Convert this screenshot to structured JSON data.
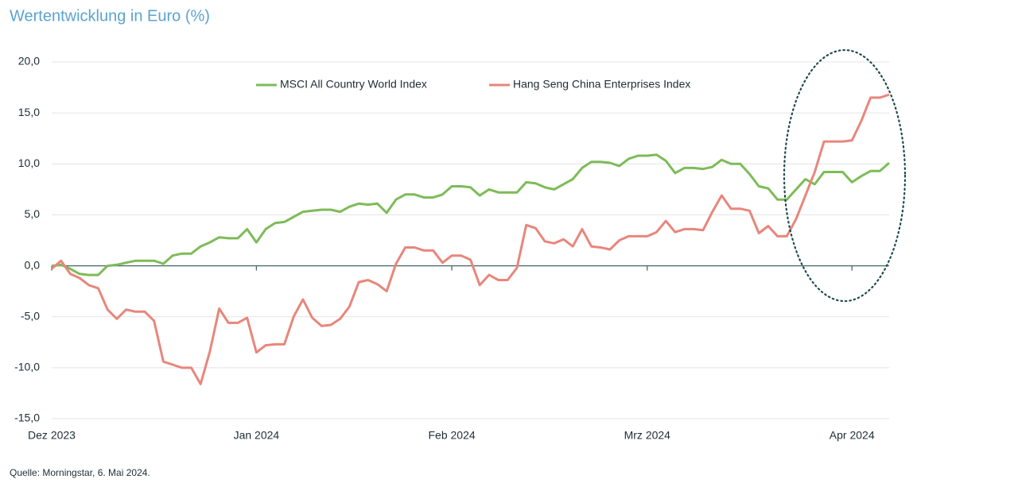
{
  "chart_data": {
    "type": "line",
    "title": "Wertentwicklung in Euro (%)",
    "source": "Quelle: Morningstar, 6. Mai 2024.",
    "categories": [
      "Dez 2023",
      null,
      null,
      null,
      null,
      null,
      null,
      null,
      null,
      null,
      null,
      null,
      null,
      null,
      null,
      null,
      null,
      null,
      null,
      null,
      null,
      null,
      "Jan 2024",
      null,
      null,
      null,
      null,
      null,
      null,
      null,
      null,
      null,
      null,
      null,
      null,
      null,
      null,
      null,
      null,
      null,
      null,
      null,
      null,
      "Feb 2024",
      null,
      null,
      null,
      null,
      null,
      null,
      null,
      null,
      null,
      null,
      null,
      null,
      null,
      null,
      null,
      null,
      null,
      null,
      null,
      null,
      "Mrz 2024",
      null,
      null,
      null,
      null,
      null,
      null,
      null,
      null,
      null,
      null,
      null,
      null,
      null,
      null,
      null,
      null,
      null,
      null,
      null,
      null,
      null,
      "Apr 2024",
      null,
      null,
      null,
      null
    ],
    "series": [
      {
        "name": "MSCI All Country World Index",
        "color": "#7dbb58",
        "values": [
          0.0,
          0.1,
          -0.3,
          -0.8,
          -0.9,
          -0.9,
          0.0,
          0.1,
          0.3,
          0.5,
          0.5,
          0.5,
          0.2,
          1.0,
          1.2,
          1.2,
          1.9,
          2.3,
          2.8,
          2.7,
          2.7,
          3.6,
          2.3,
          3.6,
          4.2,
          4.3,
          4.8,
          5.3,
          5.4,
          5.5,
          5.5,
          5.3,
          5.8,
          6.1,
          6.0,
          6.1,
          5.2,
          6.5,
          7.0,
          7.0,
          6.7,
          6.7,
          7.0,
          7.8,
          7.8,
          7.7,
          6.9,
          7.5,
          7.2,
          7.2,
          7.2,
          8.2,
          8.1,
          7.7,
          7.5,
          8.0,
          8.5,
          9.6,
          10.2,
          10.2,
          10.1,
          9.8,
          10.5,
          10.8,
          10.8,
          10.9,
          10.3,
          9.1,
          9.6,
          9.6,
          9.5,
          9.7,
          10.4,
          10.0,
          10.0,
          9.0,
          7.8,
          7.6,
          6.5,
          6.5,
          7.5,
          8.5,
          8.0,
          9.2,
          9.2,
          9.2,
          8.2,
          8.8,
          9.3,
          9.3,
          10.1
        ]
      },
      {
        "name": "Hang Seng China Enterprises Index",
        "color": "#e8867c",
        "values": [
          -0.3,
          0.5,
          -0.8,
          -1.2,
          -1.9,
          -2.2,
          -4.3,
          -5.2,
          -4.3,
          -4.5,
          -4.5,
          -5.4,
          -9.4,
          -9.7,
          -10.0,
          -10.0,
          -11.6,
          -8.4,
          -4.2,
          -5.6,
          -5.6,
          -5.1,
          -8.5,
          -7.8,
          -7.7,
          -7.7,
          -5.0,
          -3.3,
          -5.1,
          -5.9,
          -5.8,
          -5.2,
          -4.0,
          -1.6,
          -1.4,
          -1.8,
          -2.5,
          0.2,
          1.8,
          1.8,
          1.5,
          1.5,
          0.3,
          1.0,
          1.0,
          0.6,
          -1.9,
          -0.9,
          -1.4,
          -1.4,
          -0.2,
          4.0,
          3.7,
          2.4,
          2.2,
          2.6,
          1.9,
          3.6,
          1.9,
          1.8,
          1.6,
          2.5,
          2.9,
          2.9,
          2.9,
          3.3,
          4.4,
          3.3,
          3.6,
          3.6,
          3.5,
          5.3,
          6.9,
          5.6,
          5.6,
          5.4,
          3.2,
          3.9,
          2.9,
          2.9,
          4.6,
          6.9,
          9.2,
          12.2,
          12.2,
          12.2,
          12.3,
          14.2,
          16.5,
          16.5,
          16.8
        ]
      }
    ],
    "ylim": [
      -15,
      20
    ],
    "yticks": [
      {
        "value": -15,
        "label": "-15,0"
      },
      {
        "value": -10,
        "label": "-10,0"
      },
      {
        "value": -5,
        "label": "-5,0"
      },
      {
        "value": 0,
        "label": "0,0"
      },
      {
        "value": 5,
        "label": "5,0"
      },
      {
        "value": 10,
        "label": "10,0"
      },
      {
        "value": 15,
        "label": "15,0"
      },
      {
        "value": 20,
        "label": "20,0"
      }
    ],
    "grid": true,
    "legend": "top"
  }
}
